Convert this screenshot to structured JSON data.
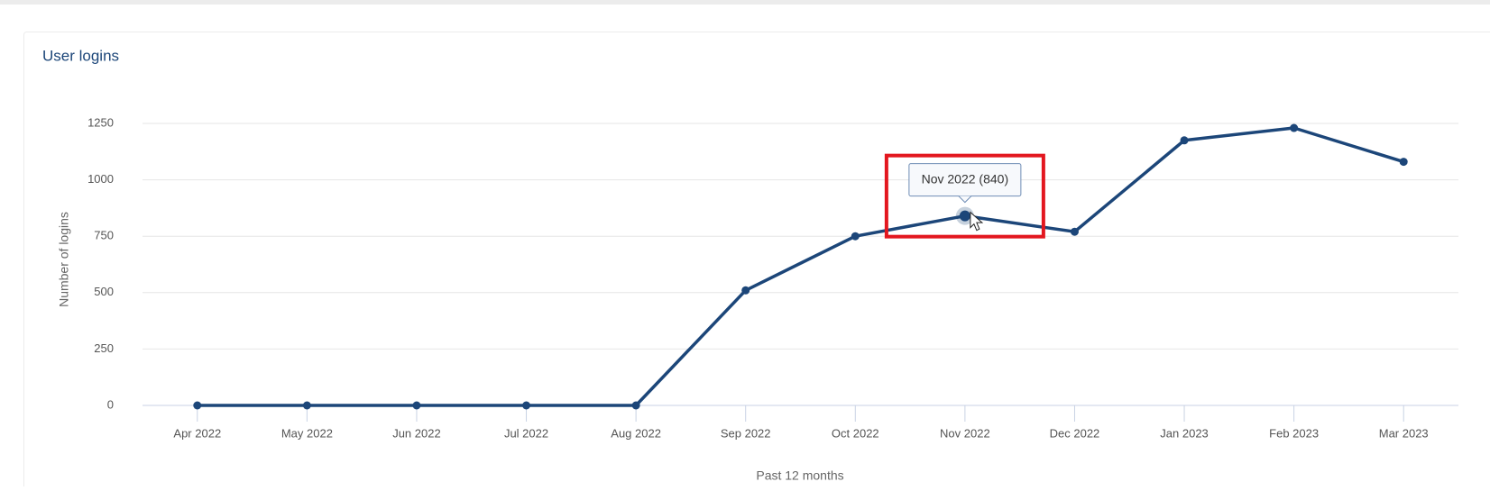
{
  "chart_data": {
    "type": "line",
    "title": "User logins",
    "x_label": "Past 12 months",
    "y_label": "Number of logins",
    "categories": [
      "Apr 2022",
      "May 2022",
      "Jun 2022",
      "Jul 2022",
      "Aug 2022",
      "Sep 2022",
      "Oct 2022",
      "Nov 2022",
      "Dec 2022",
      "Jan 2023",
      "Feb 2023",
      "Mar 2023"
    ],
    "series": [
      {
        "name": "User logins",
        "color": "#1c4679",
        "values": [
          0,
          0,
          0,
          0,
          0,
          510,
          750,
          840,
          770,
          1175,
          1230,
          1080
        ]
      }
    ],
    "ylim": [
      0,
      1250
    ],
    "yticks": [
      0,
      250,
      500,
      750,
      1000,
      1250
    ],
    "grid": true,
    "tooltip": {
      "index": 7,
      "text": "Nov 2022 (840)"
    }
  }
}
